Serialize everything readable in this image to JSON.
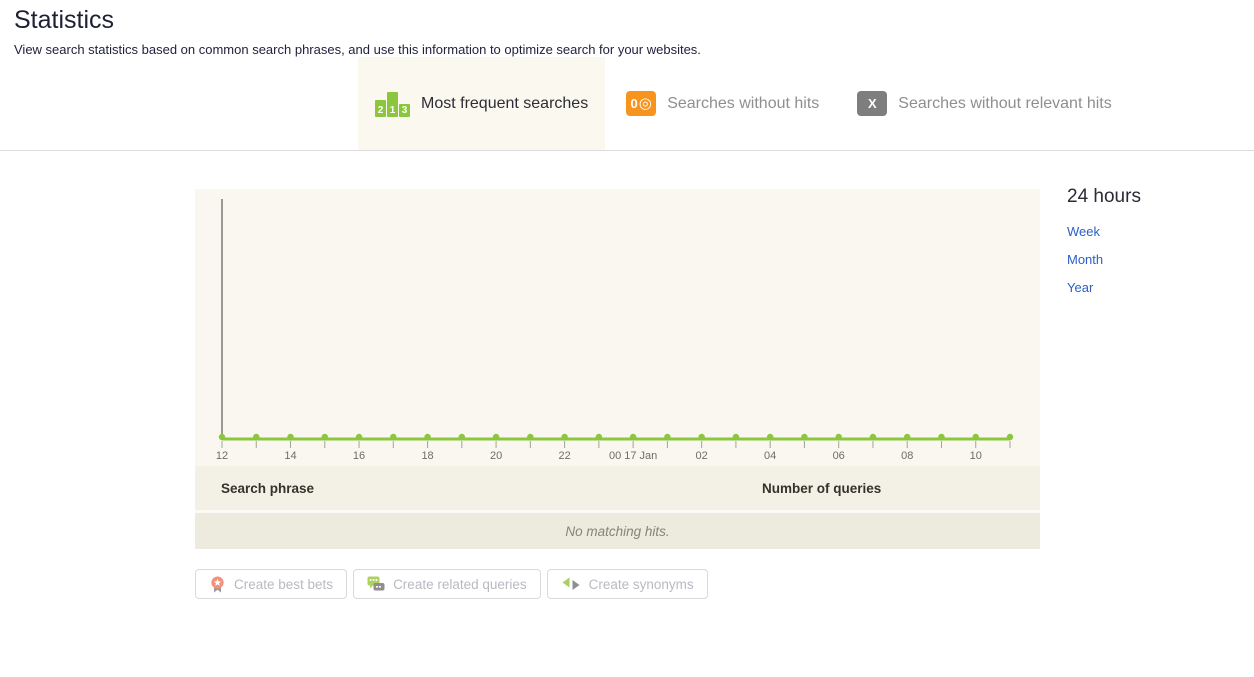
{
  "page": {
    "title": "Statistics",
    "subtitle": "View search statistics based on common search phrases, and use this information to optimize search for your websites."
  },
  "tabs": [
    {
      "label": "Most frequent searches",
      "active": true,
      "icon": "podium-213-icon",
      "icon_digits": [
        "2",
        "1",
        "3"
      ]
    },
    {
      "label": "Searches without hits",
      "active": false,
      "icon": "zero-hits-icon",
      "icon_digit": "0",
      "icon_symbol": "◎"
    },
    {
      "label": "Searches without relevant hits",
      "active": false,
      "icon": "x-icon",
      "icon_letter": "X"
    }
  ],
  "time_range": {
    "selected": "24 hours",
    "options": [
      {
        "label": "Week"
      },
      {
        "label": "Month"
      },
      {
        "label": "Year"
      }
    ]
  },
  "chart_data": {
    "type": "line",
    "title": "",
    "xlabel": "",
    "ylabel": "",
    "x_tick_labels": [
      "12",
      "14",
      "16",
      "18",
      "20",
      "22",
      "00 17 Jan",
      "02",
      "04",
      "06",
      "08",
      "10"
    ],
    "label_every_n_points": 2,
    "x_hours": [
      "12",
      "13",
      "14",
      "15",
      "16",
      "17",
      "18",
      "19",
      "20",
      "21",
      "22",
      "23",
      "00",
      "01",
      "02",
      "03",
      "04",
      "05",
      "06",
      "07",
      "08",
      "09",
      "10",
      "11"
    ],
    "values": [
      0,
      0,
      0,
      0,
      0,
      0,
      0,
      0,
      0,
      0,
      0,
      0,
      0,
      0,
      0,
      0,
      0,
      0,
      0,
      0,
      0,
      0,
      0,
      0
    ],
    "line_color": "#8cc63e",
    "point_color": "#8cc63e",
    "axis_color": "#9a9a94",
    "tick_color": "#a3a39b",
    "tick_label_color": "#6e6e62",
    "grid": false,
    "legend": "none"
  },
  "table": {
    "columns": [
      {
        "label": "Search phrase"
      },
      {
        "label": "Number of queries"
      }
    ],
    "empty_message": "No matching hits."
  },
  "actions": [
    {
      "label": "Create best bets",
      "icon": "best-bets-ribbon-icon"
    },
    {
      "label": "Create related queries",
      "icon": "related-queries-chat-icon"
    },
    {
      "label": "Create synonyms",
      "icon": "synonyms-arrows-icon"
    }
  ],
  "colors": {
    "accent_green": "#8cc63e",
    "accent_orange": "#f7941e",
    "badge_gray": "#7e7e7e",
    "link_blue": "#2a5fc9",
    "panel_beige": "#f9f7f0",
    "header_row_beige": "#f3f1e5",
    "empty_row_beige": "#ecebdd"
  }
}
